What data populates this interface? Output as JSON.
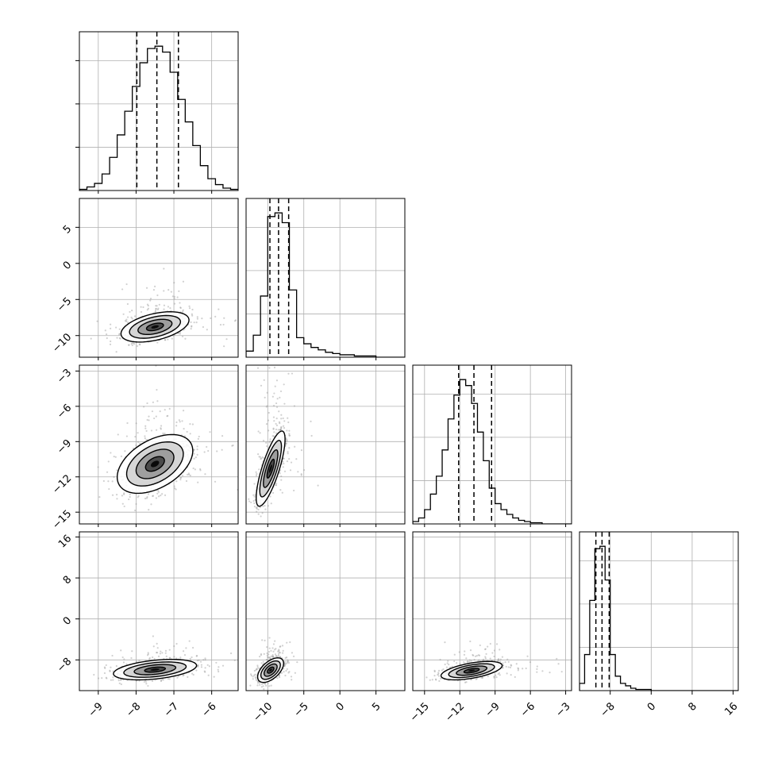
{
  "chart_data": {
    "type": "corner",
    "grid": true,
    "quantiles": [
      0.16,
      0.5,
      0.84
    ],
    "parameters": [
      {
        "range": [
          -9.5,
          -5.3
        ],
        "ticks": [
          -9,
          -8,
          -7,
          -6
        ],
        "tick_labels": [
          "−9",
          "−8",
          "−7",
          "−6"
        ],
        "mean": -7.45,
        "sd": 0.5,
        "quantile_values": [
          -7.98,
          -7.45,
          -6.88
        ],
        "hist_bins": [
          -9.5,
          -9.3,
          -9.1,
          -8.9,
          -8.7,
          -8.5,
          -8.3,
          -8.1,
          -7.9,
          -7.7,
          -7.5,
          -7.3,
          -7.1,
          -6.9,
          -6.7,
          -6.5,
          -6.3,
          -6.1,
          -5.9,
          -5.7,
          -5.5,
          -5.3
        ],
        "hist_counts": [
          1,
          3,
          6,
          14,
          28,
          47,
          67,
          88,
          108,
          120,
          122,
          117,
          100,
          77,
          58,
          38,
          21,
          10,
          5,
          2,
          1
        ]
      },
      {
        "range": [
          -13,
          9
        ],
        "ticks": [
          -10,
          -5,
          0,
          5
        ],
        "tick_labels": [
          "−10",
          "−5",
          "0",
          "5"
        ],
        "mean": -8.5,
        "sd": 1.6,
        "quantile_values": [
          -9.7,
          -8.5,
          -7.1
        ],
        "hist_bins": [
          -13,
          -12,
          -11,
          -10,
          -9,
          -8,
          -7,
          -6,
          -5,
          -4,
          -3,
          -2,
          -1,
          0,
          1,
          2,
          3,
          4,
          5,
          6,
          7,
          8,
          9
        ],
        "hist_counts": [
          5,
          18,
          50,
          115,
          118,
          110,
          55,
          16,
          11,
          8,
          6,
          4,
          3,
          2,
          2,
          1,
          1,
          1,
          0,
          0,
          0,
          0
        ]
      },
      {
        "range": [
          -16,
          -2.5
        ],
        "ticks": [
          -15,
          -12,
          -9,
          -6,
          -3
        ],
        "tick_labels": [
          "−15",
          "−12",
          "−9",
          "−6",
          "−3"
        ],
        "mean": -10.8,
        "sd": 1.4,
        "quantile_values": [
          -12.1,
          -10.8,
          -9.3
        ],
        "hist_bins": [
          -16,
          -15.5,
          -15,
          -14.5,
          -14,
          -13.5,
          -13,
          -12.5,
          -12,
          -11.5,
          -11,
          -10.5,
          -10,
          -9.5,
          -9,
          -8.5,
          -8,
          -7.5,
          -7,
          -6.5,
          -6,
          -5.5,
          -5,
          -4.5,
          -4,
          -3.5,
          -3,
          -2.5
        ],
        "hist_counts": [
          2,
          5,
          12,
          25,
          40,
          62,
          88,
          108,
          121,
          116,
          101,
          77,
          53,
          30,
          17,
          12,
          8,
          5,
          3,
          2,
          1,
          1,
          0,
          0,
          0,
          0,
          0
        ]
      },
      {
        "range": [
          -14,
          17
        ],
        "ticks": [
          -8,
          0,
          8,
          16
        ],
        "tick_labels": [
          "−8",
          "0",
          "8",
          "16"
        ],
        "mean": -9.5,
        "sd": 1.2,
        "quantile_values": [
          -10.8,
          -9.6,
          -8.2
        ],
        "hist_bins": [
          -14,
          -13,
          -12,
          -11,
          -10,
          -9,
          -8,
          -7,
          -6,
          -5,
          -4,
          -3,
          -2,
          -1,
          0,
          1,
          2,
          3,
          4,
          5,
          6,
          7,
          8,
          9,
          10,
          11,
          12,
          13,
          14,
          15,
          16,
          17
        ],
        "hist_counts": [
          6,
          30,
          75,
          118,
          120,
          92,
          30,
          12,
          6,
          4,
          2,
          1,
          1,
          1,
          0,
          0,
          0,
          0,
          0,
          0,
          0,
          0,
          0,
          0,
          0,
          0,
          0,
          0,
          0,
          0,
          0
        ]
      }
    ],
    "pairs": [
      {
        "x": 0,
        "y": 1,
        "center": [
          -7.5,
          -8.8
        ],
        "sd": [
          0.45,
          1.05
        ],
        "corr": 0.45
      },
      {
        "x": 0,
        "y": 2,
        "center": [
          -7.5,
          -10.9
        ],
        "sd": [
          0.5,
          1.25
        ],
        "corr": 0.45
      },
      {
        "x": 1,
        "y": 2,
        "center": [
          -9.6,
          -11.3
        ],
        "sd": [
          1.0,
          1.6
        ],
        "corr": 0.78
      },
      {
        "x": 0,
        "y": 3,
        "center": [
          -7.5,
          -9.9
        ],
        "sd": [
          0.55,
          1.0
        ],
        "corr": 0.4
      },
      {
        "x": 1,
        "y": 3,
        "center": [
          -9.6,
          -10.0
        ],
        "sd": [
          0.9,
          1.2
        ],
        "corr": 0.55
      },
      {
        "x": 2,
        "y": 3,
        "center": [
          -11.0,
          -10.1
        ],
        "sd": [
          1.3,
          0.9
        ],
        "corr": 0.55
      }
    ]
  }
}
